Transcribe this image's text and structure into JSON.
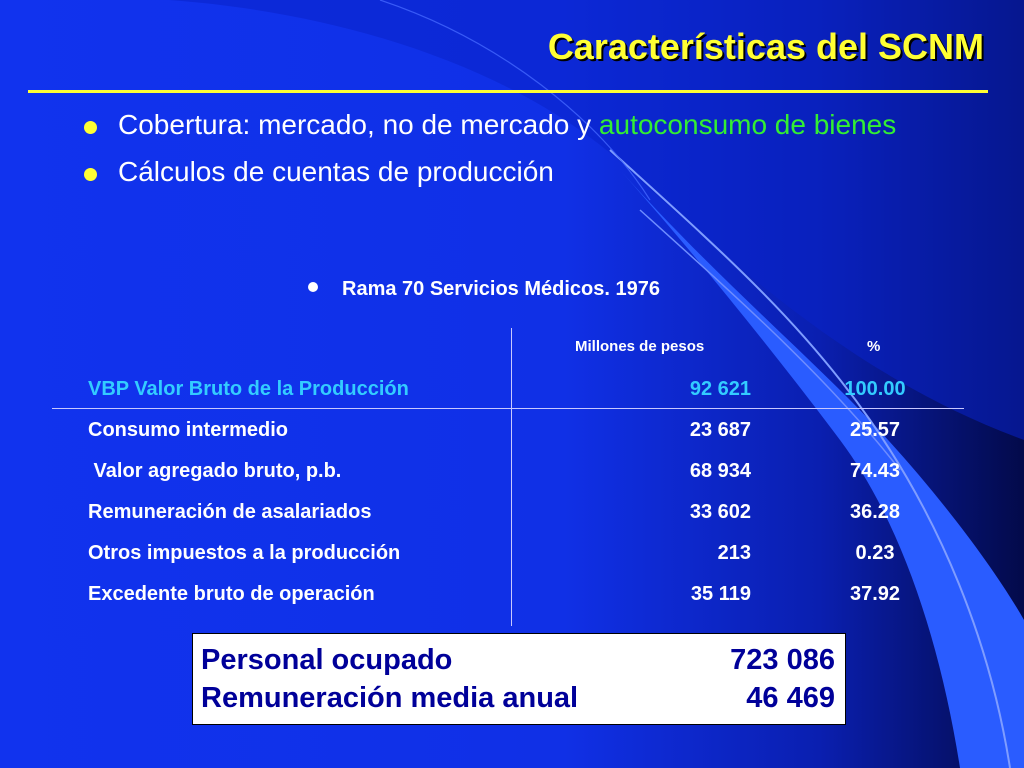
{
  "slide": {
    "title": "Características del SCNM",
    "bullets": [
      {
        "text": "Cobertura: mercado, no de mercado y ",
        "highlight": "autoconsumo de bienes"
      },
      {
        "text": "Cálculos de cuentas de producción"
      }
    ],
    "sub_bullet": "Rama 70 Servicios Médicos. 1976"
  },
  "table": {
    "columns": [
      "",
      "Millones de pesos",
      "%"
    ],
    "rows": [
      {
        "label": "VBP Valor Bruto de la Producción",
        "value": "92 621",
        "pct": "100.00"
      },
      {
        "label": "Consumo intermedio",
        "value": "23 687",
        "pct": "25.57"
      },
      {
        "label": " Valor agregado bruto, p.b.",
        "value": "68 934",
        "pct": "74.43"
      },
      {
        "label": "Remuneración de asalariados",
        "value": "33 602",
        "pct": "36.28"
      },
      {
        "label": "Otros impuestos a la producción",
        "value": "213",
        "pct": "0.23"
      },
      {
        "label": "Excedente bruto de operación",
        "value": "35 119",
        "pct": "37.92"
      }
    ]
  },
  "summary": [
    {
      "label": "Personal ocupado",
      "value": "723 086"
    },
    {
      "label": "Remuneración media anual",
      "value": "46 469"
    }
  ],
  "colors": {
    "background": "#1133ee",
    "title": "#ffff33",
    "highlight": "#33ee33",
    "first_row": "#33ccff",
    "summary_text": "#000099"
  }
}
